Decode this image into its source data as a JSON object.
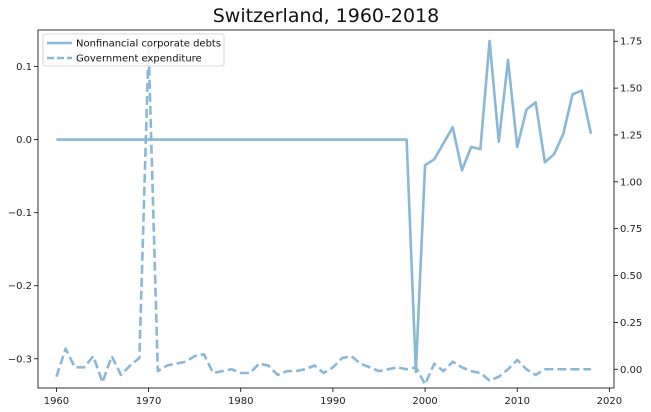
{
  "chart_data": {
    "type": "line",
    "title": "Switzerland, 1960-2018",
    "xlabel": "",
    "ylabel_left": "",
    "ylabel_right": "",
    "xlim": [
      1958,
      2020.5
    ],
    "x_ticks": [
      1960,
      1970,
      1980,
      1990,
      2000,
      2010,
      2020
    ],
    "ylim_left": [
      -0.34,
      0.15
    ],
    "y_ticks_left": [
      -0.3,
      -0.2,
      -0.1,
      0.0,
      0.1
    ],
    "y_tick_labels_left": [
      "−0.3",
      "−0.2",
      "−0.1",
      "0.0",
      "0.1"
    ],
    "ylim_right": [
      -0.1,
      1.81
    ],
    "y_ticks_right": [
      0.0,
      0.25,
      0.5,
      0.75,
      1.0,
      1.25,
      1.5,
      1.75
    ],
    "y_tick_labels_right": [
      "0.00",
      "0.25",
      "0.50",
      "0.75",
      "1.00",
      "1.25",
      "1.50",
      "1.75"
    ],
    "grid": false,
    "legend_position": "top-left",
    "color": "#8ab8d6",
    "series": [
      {
        "name": "Nonfinancial corporate debts",
        "axis": "left",
        "style": "solid",
        "x": [
          1960,
          1961,
          1962,
          1963,
          1964,
          1965,
          1966,
          1967,
          1968,
          1969,
          1970,
          1971,
          1972,
          1973,
          1974,
          1975,
          1976,
          1977,
          1978,
          1979,
          1980,
          1981,
          1982,
          1983,
          1984,
          1985,
          1986,
          1987,
          1988,
          1989,
          1990,
          1991,
          1992,
          1993,
          1994,
          1995,
          1996,
          1997,
          1998,
          1999,
          2000,
          2001,
          2002,
          2003,
          2004,
          2005,
          2006,
          2007,
          2008,
          2009,
          2010,
          2011,
          2012,
          2013,
          2014,
          2015,
          2016,
          2017,
          2018
        ],
        "values": [
          0,
          0,
          0,
          0,
          0,
          0,
          0,
          0,
          0,
          0,
          0,
          0,
          0,
          0,
          0,
          0,
          0,
          0,
          0,
          0,
          0,
          0,
          0,
          0,
          0,
          0,
          0,
          0,
          0,
          0,
          0,
          0,
          0,
          0,
          0,
          0,
          0,
          0,
          0,
          -0.318,
          -0.035,
          -0.027,
          -0.005,
          0.017,
          -0.042,
          -0.01,
          -0.013,
          0.135,
          -0.003,
          0.109,
          -0.01,
          0.041,
          0.051,
          -0.031,
          -0.02,
          0.008,
          0.062,
          0.067,
          0.008
        ]
      },
      {
        "name": "Government expenditure",
        "axis": "right",
        "style": "dashed",
        "x": [
          1960,
          1961,
          1962,
          1963,
          1964,
          1965,
          1966,
          1967,
          1968,
          1969,
          1970,
          1971,
          1972,
          1973,
          1974,
          1975,
          1976,
          1977,
          1978,
          1979,
          1980,
          1981,
          1982,
          1983,
          1984,
          1985,
          1986,
          1987,
          1988,
          1989,
          1990,
          1991,
          1992,
          1993,
          1994,
          1995,
          1996,
          1997,
          1998,
          1999,
          2000,
          2001,
          2002,
          2003,
          2004,
          2005,
          2006,
          2007,
          2008,
          2009,
          2010,
          2011,
          2012,
          2013,
          2014,
          2015,
          2016,
          2017,
          2018
        ],
        "values": [
          -0.04,
          0.11,
          0.01,
          0.01,
          0.07,
          -0.07,
          0.07,
          -0.03,
          0.02,
          0.06,
          1.72,
          -0.01,
          0.02,
          0.03,
          0.04,
          0.07,
          0.08,
          -0.02,
          -0.01,
          0.0,
          -0.02,
          -0.02,
          0.03,
          0.02,
          -0.03,
          -0.01,
          -0.01,
          0.0,
          0.02,
          -0.02,
          0.01,
          0.06,
          0.07,
          0.03,
          0.01,
          -0.01,
          0.0,
          0.01,
          0.0,
          0.01,
          -0.08,
          0.03,
          -0.01,
          0.04,
          0.01,
          -0.01,
          -0.02,
          -0.06,
          -0.04,
          0.0,
          0.05,
          0.0,
          -0.03,
          0.0,
          0.0,
          0.0,
          0.0,
          0.0,
          0.0
        ]
      }
    ]
  }
}
